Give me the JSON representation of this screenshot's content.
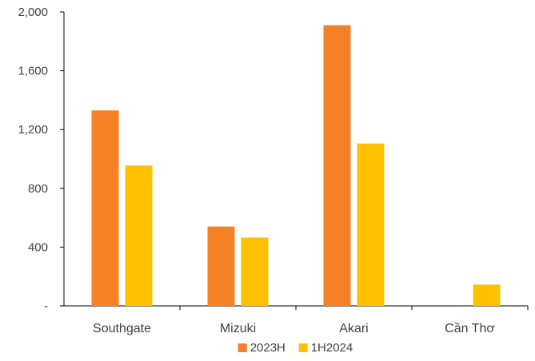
{
  "chart_data": {
    "type": "bar",
    "categories": [
      "Southgate",
      "Mizuki",
      "Akari",
      "Cần Thơ"
    ],
    "series": [
      {
        "name": "2023H",
        "color": "#F58025",
        "values": [
          1330,
          540,
          1910,
          null
        ]
      },
      {
        "name": "1H2024",
        "color": "#FFC000",
        "values": [
          955,
          465,
          1105,
          145
        ]
      }
    ],
    "ylim": [
      0,
      2000
    ],
    "yticks": [
      {
        "value": 0,
        "label": "-"
      },
      {
        "value": 400,
        "label": "400"
      },
      {
        "value": 800,
        "label": "800"
      },
      {
        "value": 1200,
        "label": "1,200"
      },
      {
        "value": 1600,
        "label": "1,600"
      },
      {
        "value": 2000,
        "label": "2,000"
      }
    ],
    "legend": {
      "position": "bottom"
    },
    "grid": false
  }
}
